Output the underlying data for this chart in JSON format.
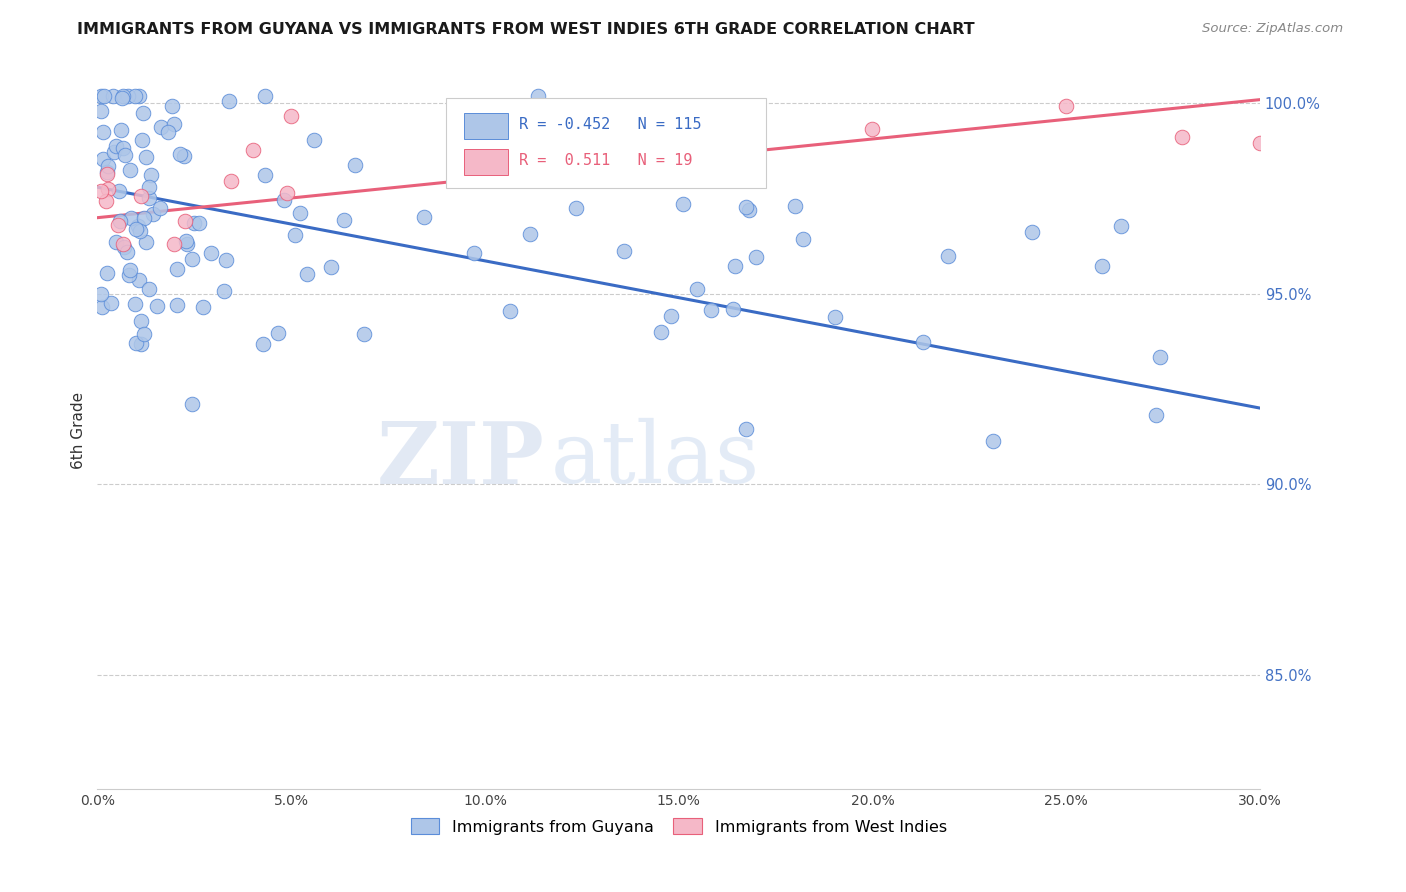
{
  "title": "IMMIGRANTS FROM GUYANA VS IMMIGRANTS FROM WEST INDIES 6TH GRADE CORRELATION CHART",
  "source": "Source: ZipAtlas.com",
  "ylabel": "6th Grade",
  "xmin": 0.0,
  "xmax": 0.3,
  "ymin": 0.82,
  "ymax": 1.008,
  "legend_blue_r": "-0.452",
  "legend_blue_n": "115",
  "legend_pink_r": "0.511",
  "legend_pink_n": "19",
  "blue_color": "#aec6e8",
  "pink_color": "#f5b8c8",
  "blue_edge_color": "#5b8dd9",
  "pink_edge_color": "#e8607a",
  "blue_line_color": "#3a6bc4",
  "pink_line_color": "#e8607a",
  "watermark_zip": "ZIP",
  "watermark_atlas": "atlas",
  "ytick_vals": [
    0.85,
    0.9,
    0.95,
    1.0
  ],
  "ytick_labels": [
    "85.0%",
    "90.0%",
    "95.0%",
    "100.0%"
  ],
  "blue_label": "Immigrants from Guyana",
  "pink_label": "Immigrants from West Indies"
}
